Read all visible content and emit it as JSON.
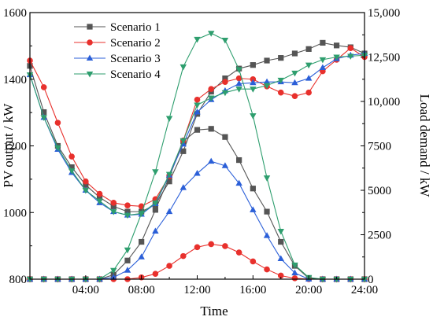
{
  "chart_data": {
    "type": "line",
    "xlabel": "Time",
    "ylabel_left": "PV output / kW",
    "ylabel_right": "Load demand / kW",
    "x_ticks": [
      "04:00",
      "08:00",
      "12:00",
      "16:00",
      "20:00",
      "24:00"
    ],
    "x_tick_hours": [
      4,
      8,
      12,
      16,
      20,
      24
    ],
    "xlim": [
      0,
      24
    ],
    "ylim_left": [
      800,
      1600
    ],
    "y_ticks_left": [
      "800",
      "1000",
      "1200",
      "1400",
      "1600"
    ],
    "y_tick_values_left": [
      800,
      1000,
      1200,
      1400,
      1600
    ],
    "ylim_right": [
      0,
      15000
    ],
    "y_ticks_right": [
      "0",
      "2500",
      "5000",
      "7500",
      "10,000",
      "12,500",
      "15,000"
    ],
    "y_tick_values_right": [
      0,
      2500,
      5000,
      7500,
      10000,
      12500,
      15000
    ],
    "x_hours": [
      0,
      1,
      2,
      3,
      4,
      5,
      6,
      7,
      8,
      9,
      10,
      11,
      12,
      13,
      14,
      15,
      16,
      17,
      18,
      19,
      20,
      21,
      22,
      23,
      24
    ],
    "legend_position": "top-left",
    "series": [
      {
        "name": "Scenario 1",
        "color": "#555555",
        "marker": "square",
        "load": [
          12000,
          9400,
          7500,
          6300,
          5300,
          4600,
          4100,
          3800,
          3800,
          4200,
          5500,
          7200,
          9300,
          10550,
          11300,
          11850,
          12050,
          12300,
          12450,
          12700,
          12950,
          13300,
          13150,
          13050,
          12700
        ],
        "pv": [
          0,
          0,
          0,
          0,
          0,
          0,
          250,
          1050,
          2100,
          3900,
          5750,
          7750,
          8400,
          8460,
          8000,
          6700,
          5100,
          3800,
          2100,
          750,
          50,
          0,
          0,
          0,
          0
        ]
      },
      {
        "name": "Scenario 2",
        "color": "#e8302c",
        "marker": "circle",
        "load": [
          12300,
          10800,
          8800,
          6900,
          5500,
          4800,
          4300,
          4150,
          4100,
          4500,
          5800,
          7800,
          10100,
          10700,
          11100,
          11300,
          11250,
          10850,
          10500,
          10300,
          10500,
          11700,
          12350,
          13000,
          12500
        ],
        "pv": [
          0,
          0,
          0,
          0,
          0,
          0,
          0,
          0,
          100,
          300,
          750,
          1300,
          1800,
          1970,
          1860,
          1500,
          1000,
          550,
          200,
          50,
          0,
          0,
          0,
          0,
          0
        ]
      },
      {
        "name": "Scenario 3",
        "color": "#2b5fd8",
        "marker": "triangle-up",
        "load": [
          11500,
          9100,
          7300,
          6000,
          5000,
          4300,
          3800,
          3600,
          3650,
          4250,
          5850,
          7600,
          9400,
          10100,
          10600,
          11000,
          11050,
          11100,
          11100,
          11050,
          11300,
          11900,
          12400,
          12600,
          12700
        ],
        "pv": [
          0,
          0,
          0,
          0,
          0,
          0,
          100,
          500,
          1250,
          2700,
          3800,
          5150,
          5950,
          6630,
          6380,
          5390,
          3900,
          2450,
          1150,
          350,
          0,
          0,
          0,
          0,
          0
        ]
      },
      {
        "name": "Scenario 4",
        "color": "#2e9e6e",
        "marker": "triangle-down",
        "load": [
          11500,
          9100,
          7400,
          6100,
          5000,
          4400,
          3800,
          3600,
          3700,
          4300,
          5900,
          7800,
          9800,
          10200,
          10500,
          10700,
          10700,
          10900,
          11200,
          11600,
          12050,
          12350,
          12500,
          12550,
          12600
        ],
        "pv": [
          0,
          0,
          0,
          0,
          0,
          0,
          500,
          1650,
          3700,
          6050,
          9050,
          11950,
          13500,
          13840,
          13450,
          11800,
          9200,
          5700,
          2700,
          800,
          100,
          0,
          0,
          0,
          0
        ]
      }
    ]
  }
}
